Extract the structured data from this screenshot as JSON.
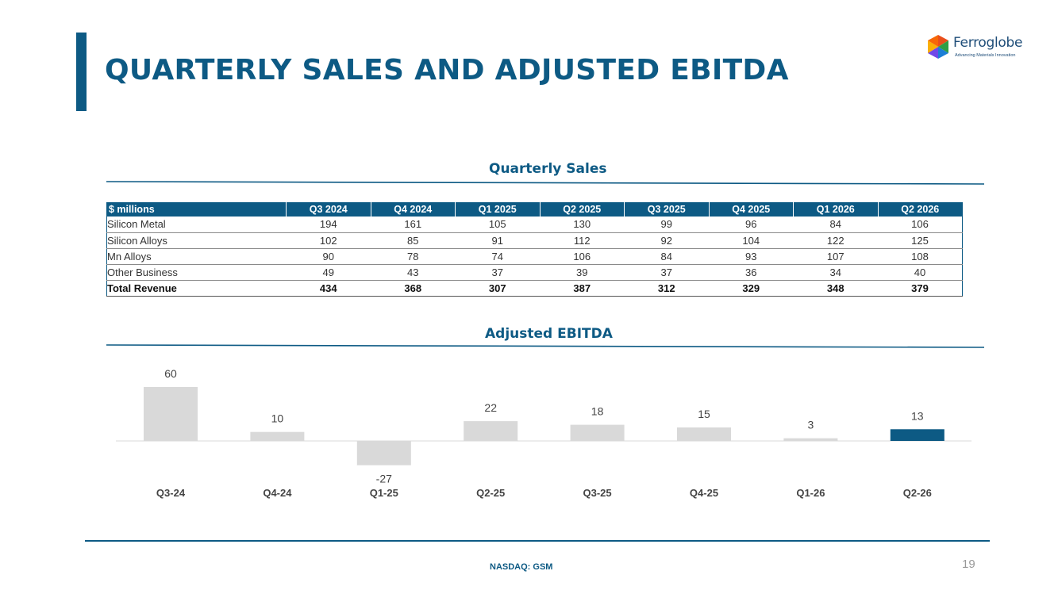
{
  "title": "QUARTERLY SALES AND ADJUSTED EBITDA",
  "logo": {
    "name": "Ferroglobe",
    "tagline": "Advancing Materials Innovation"
  },
  "sales_section": {
    "title": "Quarterly Sales",
    "header": [
      "$ millions",
      "Q3 2024",
      "Q4 2024",
      "Q1 2025",
      "Q2 2025",
      "Q3 2025",
      "Q4 2025",
      "Q1 2026",
      "Q2 2026"
    ],
    "rows": [
      [
        "Silicon Metal",
        "194",
        "161",
        "105",
        "130",
        "99",
        "96",
        "84",
        "106"
      ],
      [
        "Silicon Alloys",
        "102",
        "85",
        "91",
        "112",
        "92",
        "104",
        "122",
        "125"
      ],
      [
        "Mn Alloys",
        "90",
        "78",
        "74",
        "106",
        "84",
        "93",
        "107",
        "108"
      ],
      [
        "Other Business",
        "49",
        "43",
        "37",
        "39",
        "37",
        "36",
        "34",
        "40"
      ],
      [
        "Total Revenue",
        "434",
        "368",
        "307",
        "387",
        "312",
        "329",
        "348",
        "379"
      ]
    ]
  },
  "chart_data": {
    "type": "bar",
    "title": "Adjusted EBITDA",
    "categories": [
      "Q3-24",
      "Q4-24",
      "Q1-25",
      "Q2-25",
      "Q3-25",
      "Q4-25",
      "Q1-26",
      "Q2-26"
    ],
    "values": [
      60,
      10,
      -27,
      22,
      18,
      15,
      3,
      13
    ],
    "colors": {
      "default": "#d9d9d9",
      "highlight": "#0d5a84"
    },
    "highlight_index": 7,
    "grid": false,
    "legend": "none"
  },
  "footer": {
    "text": "NASDAQ: GSM",
    "page": "19"
  }
}
